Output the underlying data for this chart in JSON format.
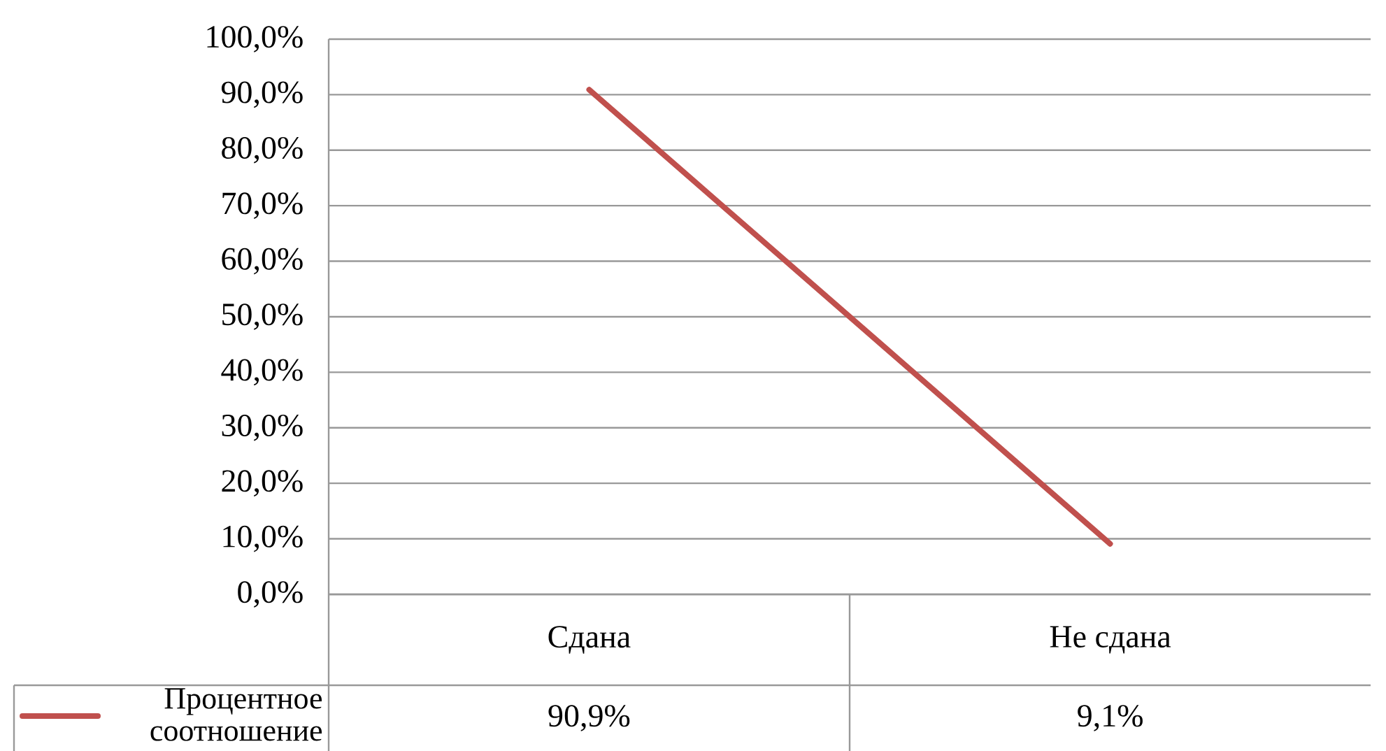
{
  "chart_data": {
    "type": "line",
    "categories": [
      "Сдана",
      "Не сдана"
    ],
    "series": [
      {
        "name": "Процентное соотношение",
        "color": "#c0504d",
        "values": [
          90.9,
          9.1
        ],
        "value_labels": [
          "90,9%",
          "9,1%"
        ]
      }
    ],
    "ylim": [
      0,
      100
    ],
    "yticks": [
      {
        "value": 0,
        "label": "0,0%"
      },
      {
        "value": 10,
        "label": "10,0%"
      },
      {
        "value": 20,
        "label": "20,0%"
      },
      {
        "value": 30,
        "label": "30,0%"
      },
      {
        "value": 40,
        "label": "40,0%"
      },
      {
        "value": 50,
        "label": "50,0%"
      },
      {
        "value": 60,
        "label": "60,0%"
      },
      {
        "value": 70,
        "label": "70,0%"
      },
      {
        "value": 80,
        "label": "80,0%"
      },
      {
        "value": 90,
        "label": "90,0%"
      },
      {
        "value": 100,
        "label": "100,0%"
      }
    ],
    "grid": "y",
    "legend": "bottom left",
    "marker": "none",
    "line_style": "solid"
  }
}
